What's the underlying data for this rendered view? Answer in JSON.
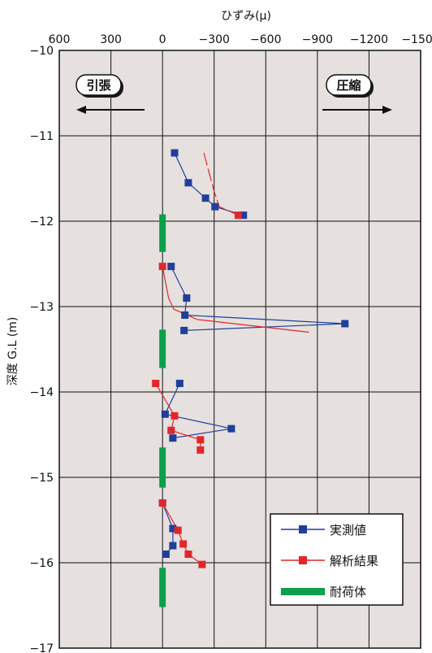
{
  "chart_data": {
    "type": "line",
    "xlabel": "ひずみ(μ)",
    "ylabel": "深度 G.L (m)",
    "xlim": [
      600,
      -1500
    ],
    "ylim": [
      -10,
      -17
    ],
    "x_ticks": [
      600,
      300,
      0,
      -300,
      -600,
      -900,
      -1200,
      -1500
    ],
    "x_tick_labels": [
      "600",
      "300",
      "0",
      "−300",
      "−600",
      "−900",
      "−1200",
      "−1500"
    ],
    "y_ticks": [
      -10,
      -11,
      -12,
      -13,
      -14,
      -15,
      -16,
      -17
    ],
    "y_tick_labels": [
      "−10",
      "−11",
      "−12",
      "−13",
      "−14",
      "−15",
      "−16",
      "−17"
    ],
    "grid": true,
    "legend_position": "bottom-right",
    "annotations": {
      "left": "引張",
      "right": "圧縮"
    },
    "series": [
      {
        "name": "実測値",
        "color": "#1f3f9a",
        "marker": "square",
        "segments": [
          {
            "x": [
              -70,
              -150,
              -250,
              -305,
              -470
            ],
            "y": [
              -11.2,
              -11.55,
              -11.73,
              -11.83,
              -11.93
            ]
          },
          {
            "x": [
              -50,
              -140,
              -130,
              -1060,
              -125
            ],
            "y": [
              -12.53,
              -12.9,
              -13.1,
              -13.2,
              -13.28
            ]
          },
          {
            "x": [
              -100,
              -15,
              -400,
              -60
            ],
            "y": [
              -13.9,
              -14.26,
              -14.43,
              -14.54
            ]
          },
          {
            "x": [
              0,
              -60,
              -60,
              -20
            ],
            "y": [
              -15.3,
              -15.6,
              -15.8,
              -15.9
            ]
          }
        ]
      },
      {
        "name": "解析結果",
        "color": "#e3262b",
        "marker": "square",
        "segments": [
          {
            "x": [
              -240,
              -300,
              -330,
              -440
            ],
            "y": [
              -11.2,
              -11.65,
              -11.83,
              -11.93
            ],
            "dashed": true,
            "markers": [
              false,
              false,
              false,
              true
            ]
          },
          {
            "x": [
              0,
              -35,
              -65,
              -200,
              -850
            ],
            "y": [
              -12.53,
              -12.9,
              -13.03,
              -13.15,
              -13.3
            ],
            "markers": [
              true,
              false,
              false,
              false,
              false
            ]
          },
          {
            "x": [
              40,
              -70,
              -50,
              -220,
              -220
            ],
            "y": [
              -13.9,
              -14.28,
              -14.45,
              -14.56,
              -14.68
            ]
          },
          {
            "x": [
              0,
              -90,
              -120,
              -150,
              -230
            ],
            "y": [
              -15.3,
              -15.62,
              -15.78,
              -15.9,
              -16.02
            ]
          }
        ]
      },
      {
        "name": "耐荷体",
        "color": "#0aa04a",
        "bar_x": 0,
        "ranges": [
          [
            -11.92,
            -12.36
          ],
          [
            -13.27,
            -13.72
          ],
          [
            -14.65,
            -15.12
          ],
          [
            -16.06,
            -16.52
          ]
        ]
      }
    ]
  }
}
